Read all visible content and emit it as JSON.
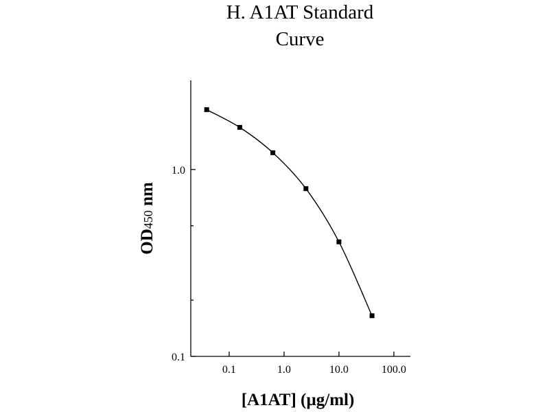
{
  "chart_data": {
    "type": "line",
    "title_lines": [
      "H. A1AT Standard",
      "Curve"
    ],
    "xlabel": "[A1AT] (µg/ml)",
    "ylabel": "OD450 nm",
    "ylabel_parts": {
      "main": "OD",
      "sub": "450",
      "unit": " nm"
    },
    "xscale": "log",
    "yscale": "log",
    "xlim": [
      0.02,
      200
    ],
    "ylim": [
      0.1,
      3
    ],
    "x_ticks": [
      {
        "value": 0.1,
        "label": "0.1"
      },
      {
        "value": 1,
        "label": "1.0"
      },
      {
        "value": 10,
        "label": "10.0"
      },
      {
        "value": 100,
        "label": "100.0"
      }
    ],
    "y_ticks": [
      {
        "value": 0.1,
        "label": "0.1"
      },
      {
        "value": 1,
        "label": "1.0"
      }
    ],
    "y_minor_ticks": [
      0.2,
      0.5
    ],
    "grid": false,
    "series": [
      {
        "x": [
          0.039,
          0.156,
          0.625,
          2.5,
          10,
          40
        ],
        "y": [
          2.09,
          1.68,
          1.23,
          0.79,
          0.41,
          0.165
        ]
      }
    ]
  }
}
